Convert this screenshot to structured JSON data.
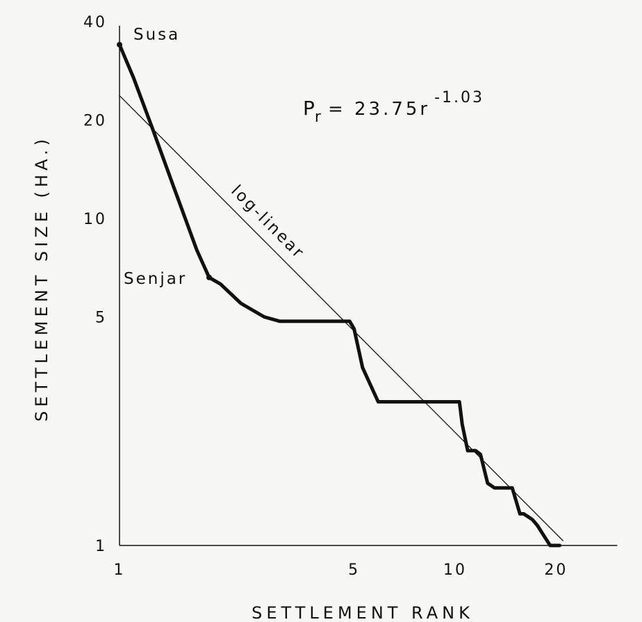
{
  "chart_data": {
    "type": "line",
    "title": "",
    "xlabel": "SETTLEMENT RANK",
    "ylabel": "SETTLEMENT SIZE (HA.)",
    "x_scale": "log",
    "y_scale": "log",
    "xlim": [
      1,
      30
    ],
    "ylim": [
      1,
      40
    ],
    "x_ticks": [
      {
        "value": 1,
        "label": "1"
      },
      {
        "value": 5,
        "label": "5"
      },
      {
        "value": 10,
        "label": "10"
      },
      {
        "value": 20,
        "label": "20"
      }
    ],
    "y_ticks": [
      {
        "value": 1,
        "label": "1"
      },
      {
        "value": 5,
        "label": "5"
      },
      {
        "value": 10,
        "label": "10"
      },
      {
        "value": 20,
        "label": "20"
      },
      {
        "value": 40,
        "label": "40"
      }
    ],
    "series": [
      {
        "style": "thick",
        "points": [
          [
            1.0,
            34
          ],
          [
            1.1,
            27
          ],
          [
            1.25,
            19
          ],
          [
            1.45,
            12.5
          ],
          [
            1.7,
            8
          ],
          [
            1.85,
            6.6
          ],
          [
            2.0,
            6.3
          ],
          [
            2.3,
            5.5
          ],
          [
            2.7,
            5.0
          ],
          [
            3.0,
            4.85
          ],
          [
            4.0,
            4.85
          ],
          [
            4.85,
            4.85
          ],
          [
            5.0,
            4.6
          ],
          [
            5.3,
            3.5
          ],
          [
            5.9,
            2.75
          ],
          [
            7.0,
            2.75
          ],
          [
            8.0,
            2.75
          ],
          [
            9.0,
            2.75
          ],
          [
            10.3,
            2.75
          ],
          [
            10.5,
            2.35
          ],
          [
            10.9,
            1.95
          ],
          [
            11.5,
            1.95
          ],
          [
            11.9,
            1.9
          ],
          [
            12.5,
            1.55
          ],
          [
            13.1,
            1.5
          ],
          [
            14.0,
            1.5
          ],
          [
            14.8,
            1.5
          ],
          [
            15.6,
            1.25
          ],
          [
            16.0,
            1.25
          ],
          [
            17.0,
            1.2
          ],
          [
            17.6,
            1.15
          ],
          [
            18.4,
            1.07
          ],
          [
            19.2,
            1.0
          ],
          [
            20.5,
            1.0
          ]
        ]
      },
      {
        "style": "thin",
        "formula": {
          "a": 23.75,
          "b": -1.03
        },
        "x_range": [
          1,
          21
        ]
      }
    ],
    "annotations": [
      {
        "text": "Susa",
        "x": 1,
        "y": 34
      },
      {
        "text": "Senjar",
        "x": 1.85,
        "y": 6.6
      },
      {
        "text": "log-linear",
        "x": 2.7,
        "y": 9.5
      }
    ],
    "equation": {
      "base": "P",
      "subscript": "r",
      "body": "= 23.75r",
      "exponent": "-1.03"
    },
    "grid": false,
    "legend": "none"
  }
}
